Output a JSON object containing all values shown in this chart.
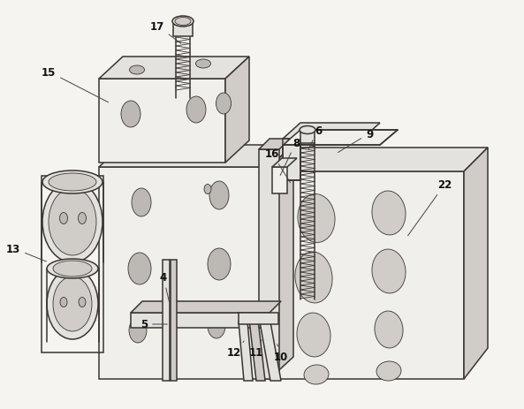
{
  "bg_color": "#f5f4f0",
  "line_color": "#3a3530",
  "lw_main": 1.1,
  "lw_thin": 0.6,
  "lw_thick": 1.4,
  "fc_light": "#f0efeb",
  "fc_mid": "#e4e2de",
  "fc_dark": "#d0cdc8",
  "fc_darker": "#bcb9b4",
  "annotation_fs": 8.5,
  "labels": [
    [
      "17",
      178,
      30,
      207,
      52
    ],
    [
      "15",
      55,
      82,
      125,
      118
    ],
    [
      "16",
      308,
      175,
      330,
      210
    ],
    [
      "8",
      335,
      162,
      316,
      202
    ],
    [
      "6",
      360,
      148,
      348,
      172
    ],
    [
      "9",
      418,
      152,
      380,
      175
    ],
    [
      "22",
      503,
      210,
      460,
      270
    ],
    [
      "13",
      15,
      282,
      55,
      298
    ],
    [
      "4",
      185,
      315,
      192,
      345
    ],
    [
      "5",
      163,
      368,
      192,
      368
    ],
    [
      "12",
      265,
      400,
      278,
      385
    ],
    [
      "11",
      290,
      400,
      297,
      383
    ],
    [
      "10",
      318,
      405,
      313,
      388
    ]
  ]
}
